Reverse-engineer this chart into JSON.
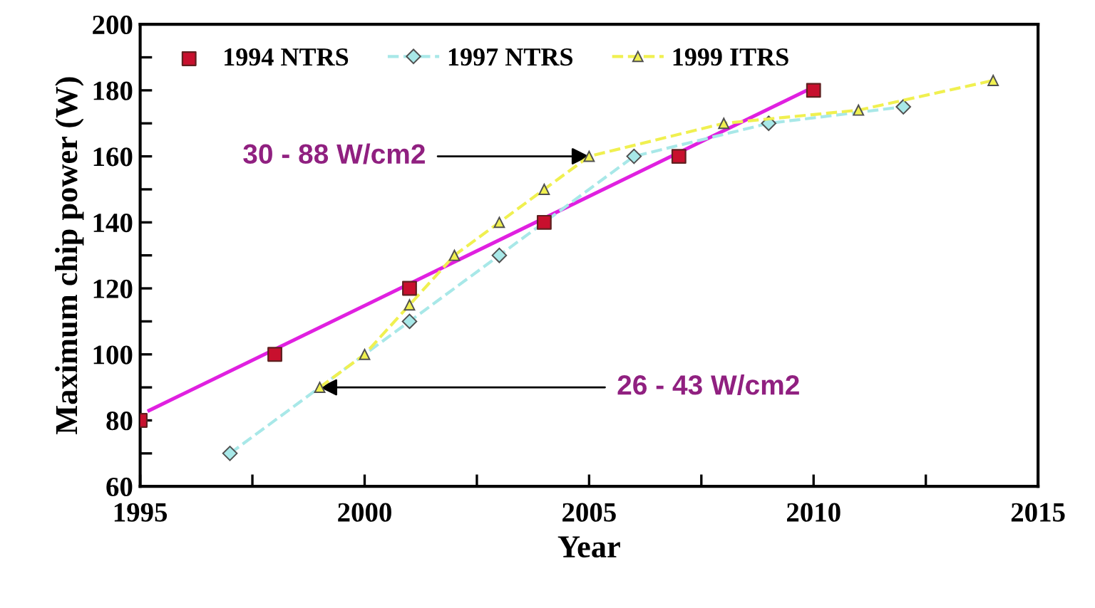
{
  "chart_data": {
    "type": "line",
    "xlabel": "Year",
    "ylabel": "Maximum chip power (W)",
    "xlim": [
      1995,
      2015
    ],
    "ylim": [
      60,
      200
    ],
    "xticks": [
      1995,
      {
        "value": 1997.5,
        "label": null
      },
      2000,
      {
        "value": 2002.5,
        "label": null
      },
      2005,
      {
        "value": 2007.5,
        "label": null
      },
      2010,
      {
        "value": 2012.5,
        "label": null
      },
      2015
    ],
    "yticks": [
      60,
      {
        "value": 70,
        "label": null
      },
      80,
      {
        "value": 90,
        "label": null
      },
      100,
      {
        "value": 110,
        "label": null
      },
      120,
      {
        "value": 130,
        "label": null
      },
      140,
      {
        "value": 150,
        "label": null
      },
      160,
      {
        "value": 170,
        "label": null
      },
      180,
      {
        "value": 190,
        "label": null
      },
      200
    ],
    "grid": false,
    "legend": "top left",
    "series": [
      {
        "name": "1994 NTRS",
        "type": "scatter",
        "color": "#c8102e",
        "marker": "square",
        "x": [
          1995,
          1998,
          2001,
          2004,
          2007,
          2010
        ],
        "values": [
          80,
          100,
          120,
          140,
          160,
          180
        ]
      },
      {
        "type": "line",
        "color": "#e020e0",
        "marker": "none",
        "line_style": "solid",
        "x": [
          1995.2,
          2010
        ],
        "values": [
          83,
          181
        ]
      },
      {
        "name": "1997 NTRS",
        "color": "#a8e8e8",
        "marker": "diamond",
        "line_style": "dashed",
        "x": [
          1997,
          2001,
          2003,
          2006,
          2009,
          2012
        ],
        "values": [
          70,
          110,
          130,
          160,
          170,
          175
        ]
      },
      {
        "name": "1999 ITRS",
        "color": "#f0f050",
        "marker": "triangle",
        "line_style": "dashed",
        "x": [
          1999,
          2000,
          2001,
          2002,
          2003,
          2004,
          2005,
          2008,
          2011,
          2014
        ],
        "values": [
          90,
          100,
          115,
          130,
          140,
          150,
          160,
          170,
          174,
          183
        ]
      }
    ],
    "annotations": [
      {
        "text": "30 - 88 W/cm2",
        "x": 2005,
        "y": 160
      },
      {
        "text": "26 - 43 W/cm2",
        "x": 1999,
        "y": 90
      }
    ]
  }
}
